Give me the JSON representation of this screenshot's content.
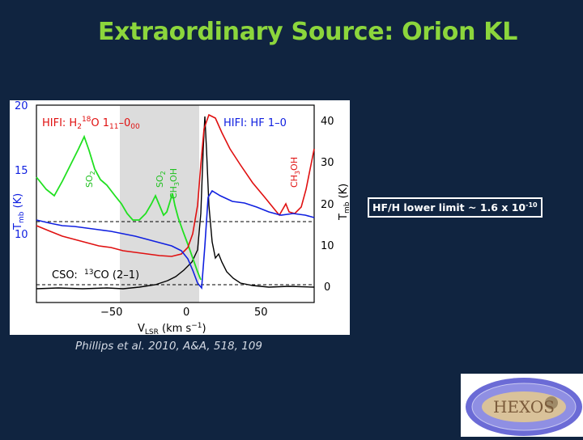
{
  "slide": {
    "title": "Extraordinary Source: Orion KL",
    "caption": "Phillips et al. 2010, A&A, 518, 109",
    "callout": {
      "prefix": "HF/H lower limit ~ 1.6 x 10",
      "exponent": "-10"
    }
  },
  "figure": {
    "hifi_h2o_label": "HIFI: H",
    "h2o_sub": "2",
    "h2o_sup": "18",
    "h2o_rest": "O  1",
    "h2o_trans_sub1": "11",
    "h2o_trans_dash": "–0",
    "h2o_trans_sub2": "00",
    "hifi_hf_label": "HIFI:  HF  1–0",
    "cso_label": "CSO:",
    "co_sup": "13",
    "co_rest": "CO  (2–1)",
    "so2_a": "SO",
    "so2_sub": "2",
    "so2_b": "SO",
    "ch3oh_a": "CH",
    "ch3oh_sub": "3",
    "ch3oh_rest": "OH",
    "ch3oh_b": "CH",
    "ch3oh_b_rest": "OH",
    "xlabel_v": "V",
    "xlabel_sub": "LSR",
    "xlabel_units": "  (km  s",
    "xlabel_sup": "−1",
    "xlabel_close": ")",
    "left_ylabel_t": "T",
    "left_ylabel_sub": "mb",
    "left_ylabel_unit": " (K)",
    "right_ylabel_t": "T",
    "right_ylabel_sub": "mb",
    "right_ylabel_unit": " (K)",
    "x_ticks": [
      "−50",
      "0",
      "50"
    ],
    "left_ticks": [
      "20",
      "15",
      "10"
    ],
    "right_ticks": [
      "40",
      "30",
      "20",
      "10",
      "0"
    ],
    "colors": {
      "h2o": "#20e020",
      "hf": "#e01010",
      "hf_alt": "#1020e0",
      "co": "#000000",
      "shade": "#dcdcdc"
    }
  },
  "logo": {
    "text": "HEXOS",
    "icon": "hexos-logo-icon"
  }
}
